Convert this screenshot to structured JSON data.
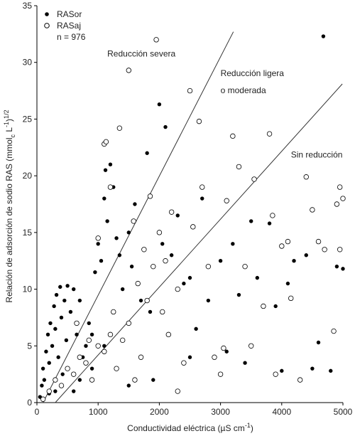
{
  "chart_data": {
    "type": "scatter",
    "xlabel": [
      "Conductividad eléctrica (µS cm",
      "-1",
      ")"
    ],
    "ylabel": [
      "Relación de adsorción de sodio RAS (mmol",
      "c",
      " L",
      "-1",
      ")",
      "1/2"
    ],
    "xlim": [
      0,
      5000
    ],
    "xticks": [
      0,
      1000,
      2000,
      3000,
      4000,
      5000
    ],
    "ylim": [
      0,
      35
    ],
    "yticks": [
      0,
      5,
      10,
      15,
      20,
      25,
      30,
      35
    ],
    "legend": "upper left",
    "legend_note": "n = 976",
    "series": [
      {
        "name": "RASor",
        "color": "#000000",
        "filled": true,
        "x": [
          50,
          80,
          100,
          120,
          150,
          180,
          200,
          220,
          250,
          280,
          300,
          320,
          350,
          380,
          400,
          420,
          450,
          480,
          500,
          550,
          600,
          650,
          700,
          750,
          800,
          850,
          900,
          950,
          1000,
          1050,
          1100,
          1120,
          1150,
          1200,
          1250,
          1300,
          1350,
          1400,
          1500,
          1550,
          1600,
          1700,
          1800,
          1850,
          1900,
          2000,
          2050,
          2100,
          2200,
          2300,
          2400,
          2500,
          2600,
          2700,
          2800,
          3000,
          3100,
          3200,
          3300,
          3400,
          3500,
          3600,
          3800,
          3900,
          4000,
          4100,
          4200,
          4400,
          4600,
          4680,
          4800,
          4900,
          5000,
          4500,
          2500,
          1500,
          600,
          700,
          300,
          200,
          900,
          1100
        ],
        "values": [
          0.5,
          1.5,
          3,
          2,
          4.5,
          6,
          3.5,
          7,
          5,
          8.5,
          6.5,
          9.5,
          4,
          10.2,
          7.5,
          2.5,
          9,
          5.5,
          10.3,
          8,
          10,
          6,
          9,
          4,
          5,
          7,
          3,
          11.5,
          14,
          12.5,
          18,
          20.5,
          16,
          21,
          19,
          14.5,
          13,
          10,
          15,
          12,
          17.5,
          9,
          22,
          8,
          2,
          26.3,
          14,
          24.3,
          13,
          16.5,
          10.5,
          11,
          6.5,
          18,
          9,
          12.5,
          4.5,
          14,
          9.5,
          3.5,
          16,
          11,
          15.8,
          8.5,
          2.8,
          10.5,
          12.5,
          13,
          5.3,
          32.3,
          2.8,
          12,
          11.8,
          3,
          4,
          1.5,
          1,
          2,
          1,
          0.8,
          6,
          5
        ]
      },
      {
        "name": "RASaj",
        "color": "#000000",
        "filled": false,
        "x": [
          100,
          200,
          300,
          400,
          500,
          600,
          700,
          800,
          900,
          1000,
          1100,
          1200,
          1300,
          1400,
          1500,
          1600,
          1700,
          1800,
          1900,
          1000,
          1100,
          1130,
          1200,
          1350,
          1500,
          1580,
          1650,
          1750,
          1850,
          1950,
          2000,
          2050,
          2100,
          2200,
          2300,
          2400,
          2500,
          2550,
          2650,
          2700,
          2800,
          2900,
          3000,
          3100,
          3200,
          3300,
          3400,
          3500,
          3550,
          3700,
          3800,
          3850,
          3900,
          4000,
          4100,
          4150,
          4300,
          4400,
          4500,
          4600,
          4700,
          4850,
          4900,
          4950,
          5000,
          2300,
          3050,
          4950,
          2150,
          1250,
          650,
          850
        ],
        "values": [
          0.3,
          1,
          2,
          1.5,
          3,
          2.5,
          4,
          3.5,
          2,
          5,
          4.5,
          6,
          3,
          5.5,
          7,
          2,
          4,
          9,
          12,
          14.5,
          22.8,
          23,
          19,
          24.2,
          29.3,
          16,
          10.5,
          13.5,
          18.2,
          32,
          15,
          8,
          12.5,
          16.8,
          10,
          3.5,
          27.5,
          15.5,
          24.8,
          19,
          12,
          4,
          2.5,
          17.8,
          23.5,
          20.8,
          12,
          5,
          19.7,
          8.5,
          23.7,
          16.5,
          2.5,
          13.8,
          14.2,
          9.2,
          2,
          19.9,
          17,
          14.2,
          13.5,
          6.3,
          17.5,
          19,
          18,
          1,
          4.8,
          13.5,
          6,
          8,
          7,
          5.5
        ]
      }
    ],
    "lines": [
      {
        "x": [
          100,
          3210
        ],
        "y": [
          0,
          32.7
        ]
      },
      {
        "x": [
          300,
          4990
        ],
        "y": [
          0,
          28.1
        ]
      }
    ],
    "annotations": [
      {
        "text": "Reducción severa",
        "x": 1150,
        "y": 30.5
      },
      {
        "text": "Reducción ligera",
        "x": 3000,
        "y": 28.8
      },
      {
        "text": "o moderada",
        "x": 3000,
        "y": 27.3
      },
      {
        "text": "Sin reducción",
        "x": 4150,
        "y": 21.6
      }
    ]
  }
}
